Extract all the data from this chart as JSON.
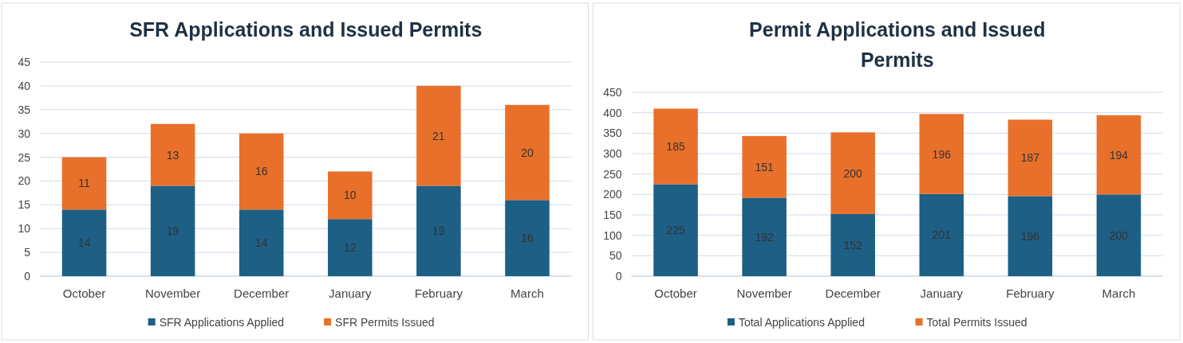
{
  "chart_data": [
    {
      "type": "bar",
      "title": "SFR Applications and Issued Permits",
      "categories": [
        "October",
        "November",
        "December",
        "January",
        "February",
        "March"
      ],
      "stacked": true,
      "series": [
        {
          "name": "SFR Applications Applied",
          "color": "#1d5f85",
          "values": [
            14,
            19,
            14,
            12,
            19,
            16
          ]
        },
        {
          "name": "SFR Permits Issued",
          "color": "#e8702a",
          "values": [
            11,
            13,
            16,
            10,
            21,
            20
          ]
        }
      ],
      "ylim": [
        0,
        45
      ],
      "yticks": [
        0,
        5,
        10,
        15,
        20,
        25,
        30,
        35,
        40,
        45
      ],
      "grid": "y",
      "legend": "bottom",
      "data_labels": true
    },
    {
      "type": "bar",
      "title": "Permit Applications and Issued Permits",
      "categories": [
        "October",
        "November",
        "December",
        "January",
        "February",
        "March"
      ],
      "stacked": true,
      "series": [
        {
          "name": "Total Applications Applied",
          "color": "#1d5f85",
          "values": [
            225,
            192,
            152,
            201,
            196,
            200
          ]
        },
        {
          "name": "Total Permits Issued",
          "color": "#e8702a",
          "values": [
            185,
            151,
            200,
            196,
            187,
            194
          ]
        }
      ],
      "ylim": [
        0,
        450
      ],
      "yticks": [
        0,
        50,
        100,
        150,
        200,
        250,
        300,
        350,
        400,
        450
      ],
      "grid": "y",
      "legend": "bottom",
      "data_labels": true
    }
  ]
}
